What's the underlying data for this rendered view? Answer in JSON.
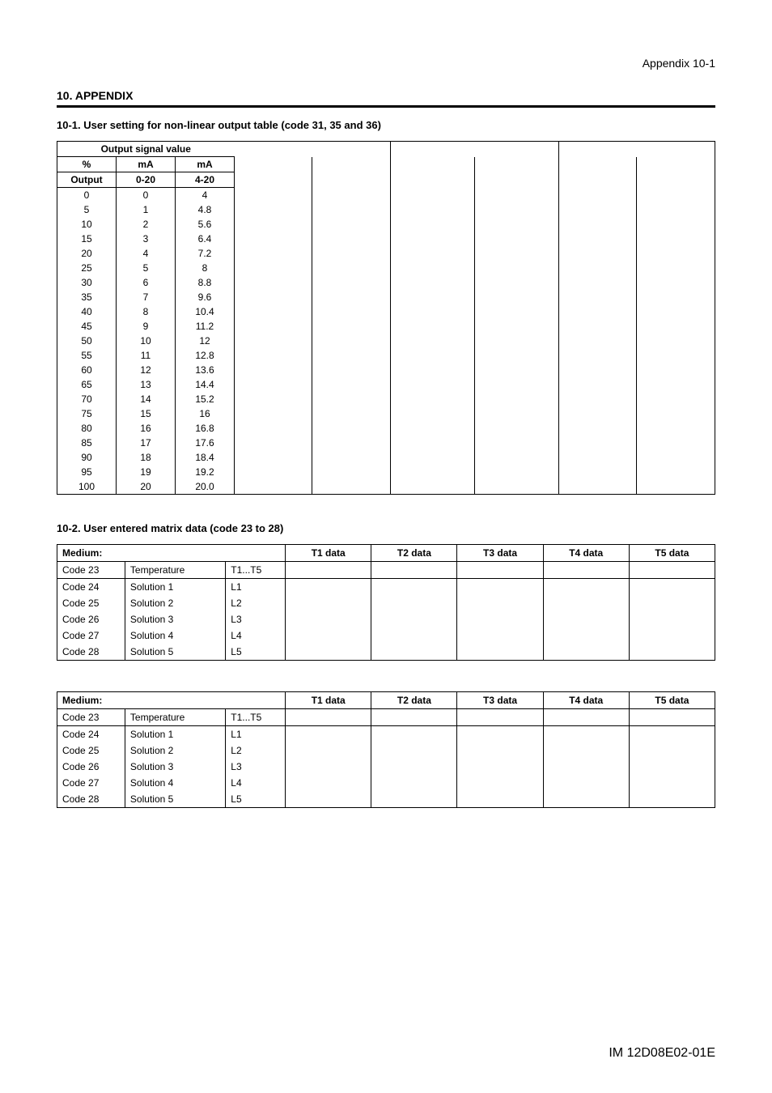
{
  "header": {
    "right": "Appendix 10-1"
  },
  "section10": {
    "title": "10. APPENDIX",
    "s1": {
      "title": "10-1. User setting for non-linear output table (code 31, 35 and 36)",
      "tbl": {
        "top_header": "Output signal value",
        "col_pct": "%",
        "col_ma1": "mA",
        "col_ma2": "mA",
        "row_output": "Output",
        "row_range1": "0-20",
        "row_range2": "4-20",
        "rows": [
          {
            "a": "0",
            "b": "0",
            "c": "4"
          },
          {
            "a": "5",
            "b": "1",
            "c": "4.8"
          },
          {
            "a": "10",
            "b": "2",
            "c": "5.6"
          },
          {
            "a": "15",
            "b": "3",
            "c": "6.4"
          },
          {
            "a": "20",
            "b": "4",
            "c": "7.2"
          },
          {
            "a": "25",
            "b": "5",
            "c": "8"
          },
          {
            "a": "30",
            "b": "6",
            "c": "8.8"
          },
          {
            "a": "35",
            "b": "7",
            "c": "9.6"
          },
          {
            "a": "40",
            "b": "8",
            "c": "10.4"
          },
          {
            "a": "45",
            "b": "9",
            "c": "11.2"
          },
          {
            "a": "50",
            "b": "10",
            "c": "12"
          },
          {
            "a": "55",
            "b": "11",
            "c": "12.8"
          },
          {
            "a": "60",
            "b": "12",
            "c": "13.6"
          },
          {
            "a": "65",
            "b": "13",
            "c": "14.4"
          },
          {
            "a": "70",
            "b": "14",
            "c": "15.2"
          },
          {
            "a": "75",
            "b": "15",
            "c": "16"
          },
          {
            "a": "80",
            "b": "16",
            "c": "16.8"
          },
          {
            "a": "85",
            "b": "17",
            "c": "17.6"
          },
          {
            "a": "90",
            "b": "18",
            "c": "18.4"
          },
          {
            "a": "95",
            "b": "19",
            "c": "19.2"
          },
          {
            "a": "100",
            "b": "20",
            "c": "20.0"
          }
        ]
      }
    },
    "s2": {
      "title": "10-2. User entered matrix data (code 23 to 28)",
      "hdr": {
        "medium": "Medium:",
        "t1": "T1 data",
        "t2": "T2 data",
        "t3": "T3 data",
        "t4": "T4 data",
        "t5": "T5 data"
      },
      "r23": {
        "code": "Code 23",
        "desc": "Temperature",
        "c2": "T1...T5"
      },
      "r24": {
        "code": "Code 24",
        "desc": "Solution 1",
        "c2": "L1"
      },
      "r25": {
        "code": "Code 25",
        "desc": "Solution 2",
        "c2": "L2"
      },
      "r26": {
        "code": "Code 26",
        "desc": "Solution 3",
        "c2": "L3"
      },
      "r27": {
        "code": "Code 27",
        "desc": "Solution 4",
        "c2": "L4"
      },
      "r28": {
        "code": "Code 28",
        "desc": "Solution 5",
        "c2": "L5"
      }
    }
  },
  "footer": "IM 12D08E02-01E"
}
